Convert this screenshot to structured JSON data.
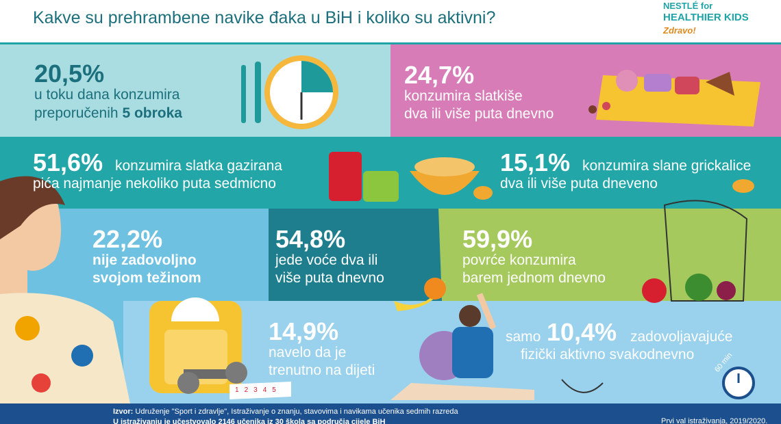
{
  "header": {
    "title": "Kakve su prehrambene navike đaka u BiH i koliko su aktivni?",
    "logo": {
      "line1": "NESTLÉ for",
      "line2": "HEALTHIER KIDS",
      "line3": "Zdravo!"
    }
  },
  "panels": [
    {
      "stat": "20,5%",
      "line1": "u toku dana konzumira",
      "line2": "preporučenih",
      "line2_bold": "5 obroka"
    },
    {
      "stat": "24,7%",
      "line1": "konzumira slatkiše",
      "line2": "dva ili više puta dnevno"
    },
    {
      "stat": "51,6%",
      "line1": "konzumira slatka gazirana",
      "line2": "pića najmanje nekoliko puta sedmicno"
    },
    {
      "stat": "15,1%",
      "line1": "konzumira slane grickalice",
      "line2": "dva ili više puta dneveno"
    },
    {
      "stat": "22,2%",
      "line1": "nije zadovoljno",
      "line2": "svojom težinom"
    },
    {
      "stat": "54,8%",
      "line1": "jede voće dva ili",
      "line2": "više puta dnevno"
    },
    {
      "stat": "59,9%",
      "line1": "povrće konzumira",
      "line2": "barem jednom dnevno"
    },
    {
      "stat": "14,9%",
      "line1": "navelo da je",
      "line2": "trenutno na dijeti"
    },
    {
      "prefix": "samo",
      "stat": "10,4%",
      "line1": "zadovoljavajuće",
      "line2": "fizički aktivno svakodnevno"
    }
  ],
  "decor": {
    "clock_label": "60 min",
    "tape": [
      "1",
      "2",
      "3",
      "4",
      "5"
    ]
  },
  "footer": {
    "source_label": "Izvor:",
    "source": "Udruženje \"Sport i zdravlje\", Istraživanje o znanju, stavovima i navikama učenika sedmih razreda",
    "note": "U istraživanju je učestvovalo 2146 učenika iz 30 škola sa područja cijele BiH",
    "wave": "Prvi val istraživanja, 2019/2020."
  }
}
